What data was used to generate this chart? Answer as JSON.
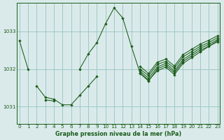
{
  "background_color": "#daeaea",
  "plot_bg_color": "#daeaea",
  "line_color": "#1a5c1a",
  "grid_color": "#a0c8c8",
  "title": "Graphe pression niveau de la mer (hPa)",
  "title_color": "#1a5c1a",
  "tick_color": "#1a5c1a",
  "ylim": [
    1030.55,
    1033.75
  ],
  "xlim": [
    -0.3,
    23.3
  ],
  "yticks": [
    1031,
    1032,
    1033
  ],
  "xticks": [
    0,
    1,
    2,
    3,
    4,
    5,
    6,
    7,
    8,
    9,
    10,
    11,
    12,
    13,
    14,
    15,
    16,
    17,
    18,
    19,
    20,
    21,
    22,
    23
  ],
  "series": [
    {
      "x": [
        0,
        1,
        2,
        3,
        4,
        5,
        6,
        7,
        8,
        9,
        10,
        11,
        12,
        13,
        14,
        15,
        16,
        17,
        18,
        19,
        20,
        21,
        22,
        23
      ],
      "y": [
        1032.75,
        1032.0,
        null,
        null,
        null,
        null,
        null,
        1032.0,
        1032.4,
        1032.7,
        1033.2,
        1033.62,
        1033.35,
        1032.6,
        1031.9,
        1031.7,
        1031.95,
        1032.05,
        1031.85,
        1032.15,
        1032.3,
        1032.45,
        1032.6,
        1032.75
      ]
    },
    {
      "x": [
        0,
        1,
        2,
        3,
        4,
        5,
        6,
        7,
        8,
        9,
        10,
        11,
        12,
        13,
        14,
        15,
        16,
        17,
        18,
        19,
        20,
        21,
        22,
        23
      ],
      "y": [
        null,
        null,
        1031.55,
        1031.25,
        1031.2,
        1031.05,
        1031.05,
        1031.3,
        1031.55,
        1031.8,
        null,
        null,
        null,
        null,
        1031.88,
        1031.68,
        1032.0,
        1032.1,
        1031.9,
        1032.2,
        1032.35,
        1032.5,
        1032.6,
        1032.72
      ]
    },
    {
      "x": [
        0,
        1,
        2,
        3,
        4,
        5,
        6,
        7,
        8,
        9,
        10,
        11,
        12,
        13,
        14,
        15,
        16,
        17,
        18,
        19,
        20,
        21,
        22,
        23
      ],
      "y": [
        null,
        null,
        null,
        1031.18,
        1031.15,
        null,
        null,
        null,
        null,
        null,
        null,
        null,
        null,
        null,
        1031.95,
        1031.75,
        1032.05,
        1032.15,
        1031.95,
        1032.25,
        1032.4,
        1032.55,
        1032.65,
        1032.78
      ]
    },
    {
      "x": [
        0,
        1,
        2,
        3,
        4,
        5,
        6,
        7,
        8,
        9,
        10,
        11,
        12,
        13,
        14,
        15,
        16,
        17,
        18,
        19,
        20,
        21,
        22,
        23
      ],
      "y": [
        null,
        null,
        null,
        null,
        null,
        null,
        null,
        null,
        null,
        null,
        null,
        null,
        null,
        null,
        1032.0,
        1031.82,
        1032.12,
        1032.2,
        1032.02,
        1032.32,
        1032.46,
        1032.6,
        1032.7,
        1032.83
      ]
    },
    {
      "x": [
        0,
        1,
        2,
        3,
        4,
        5,
        6,
        7,
        8,
        9,
        10,
        11,
        12,
        13,
        14,
        15,
        16,
        17,
        18,
        19,
        20,
        21,
        22,
        23
      ],
      "y": [
        null,
        null,
        null,
        null,
        null,
        null,
        null,
        null,
        null,
        null,
        null,
        null,
        null,
        null,
        1032.07,
        1031.88,
        1032.18,
        1032.26,
        1032.08,
        1032.38,
        1032.52,
        1032.66,
        1032.76,
        1032.88
      ]
    }
  ]
}
